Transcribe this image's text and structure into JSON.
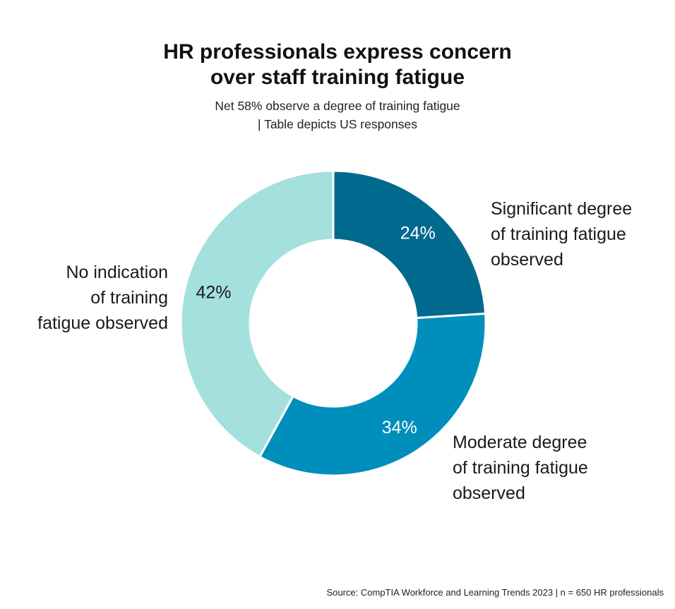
{
  "title_lines": [
    "HR professionals express concern",
    "over staff training fatigue"
  ],
  "subtitle_lines": [
    "Net 58% observe a degree of training fatigue",
    "| Table depicts US responses"
  ],
  "source": "Source: CompTIA Workforce and Learning Trends 2023 | n = 650 HR professionals",
  "chart_data": {
    "type": "pie",
    "donut": true,
    "categories": [
      "Significant degree of training fatigue observed",
      "Moderate degree of training fatigue observed",
      "No indication of training fatigue observed"
    ],
    "values": [
      24,
      34,
      42
    ],
    "value_labels": [
      "24%",
      "34%",
      "42%"
    ],
    "label_lines": [
      [
        "Significant degree",
        "of training fatigue",
        "observed"
      ],
      [
        "Moderate degree",
        "of training fatigue",
        "observed"
      ],
      [
        "No indication",
        "of training",
        "fatigue observed"
      ]
    ],
    "colors": [
      "#006a8e",
      "#008fbc",
      "#a4e0de"
    ],
    "value_label_colors": [
      "#ffffff",
      "#ffffff",
      "#1a1a1a"
    ]
  }
}
